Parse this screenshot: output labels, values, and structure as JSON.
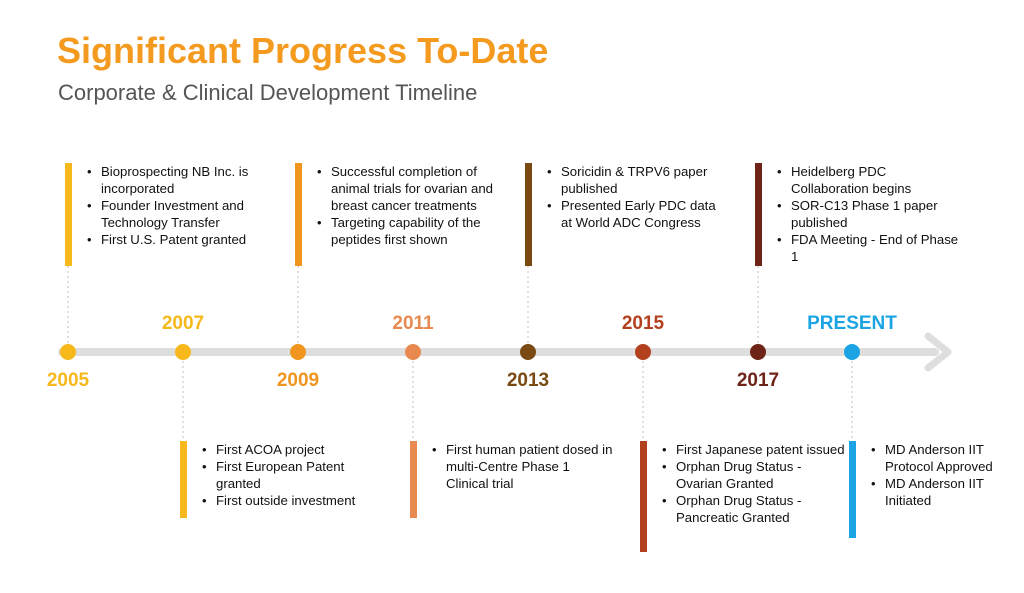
{
  "header": {
    "title": "Significant Progress To-Date",
    "subtitle": "Corporate & Clinical Development Timeline"
  },
  "colors": {
    "title": "#f39a1f",
    "axis": "#dedede",
    "y2005": "#f6b81a",
    "y2007": "#f6b81a",
    "y2009": "#f0961e",
    "y2011": "#e8894f",
    "y2013": "#7a4a12",
    "y2015": "#b2401e",
    "y2017": "#6e2417",
    "present": "#1aa4e3"
  },
  "milestones": [
    {
      "year": "2005",
      "color": "#f6b81a",
      "label_side": "below",
      "box_side": "above",
      "events": [
        "Bioprospecting NB Inc. is incorporated",
        "Founder Investment and Technology Transfer",
        "First U.S. Patent granted"
      ]
    },
    {
      "year": "2007",
      "color": "#f6b81a",
      "label_side": "above",
      "box_side": "below",
      "events": [
        "First ACOA project",
        "First European Patent granted",
        "First outside investment"
      ]
    },
    {
      "year": "2009",
      "color": "#f0961e",
      "label_side": "below",
      "box_side": "above",
      "events": [
        "Successful completion of animal trials for ovarian and breast cancer treatments",
        "Targeting capability of the peptides first shown"
      ]
    },
    {
      "year": "2011",
      "color": "#e8894f",
      "label_side": "above",
      "box_side": "below",
      "events": [
        "First human patient dosed in multi-Centre Phase 1 Clinical trial"
      ]
    },
    {
      "year": "2013",
      "color": "#7a4a12",
      "label_side": "below",
      "box_side": "above",
      "events": [
        "Soricidin & TRPV6 paper published",
        "Presented Early PDC data at World ADC Congress"
      ]
    },
    {
      "year": "2015",
      "color": "#b2401e",
      "label_side": "above",
      "box_side": "below",
      "events": [
        "First Japanese patent issued",
        "Orphan Drug Status - Ovarian Granted",
        "Orphan Drug Status - Pancreatic Granted"
      ]
    },
    {
      "year": "2017",
      "color": "#6e2417",
      "label_side": "below",
      "box_side": "above",
      "events": [
        "Heidelberg PDC Collaboration begins",
        "SOR-C13 Phase 1 paper published",
        "FDA Meeting - End of Phase 1"
      ]
    },
    {
      "year": "PRESENT",
      "color": "#1aa4e3",
      "label_side": "above",
      "box_side": "below",
      "events": [
        "MD Anderson IIT Protocol Approved",
        "MD Anderson IIT Initiated"
      ]
    }
  ]
}
